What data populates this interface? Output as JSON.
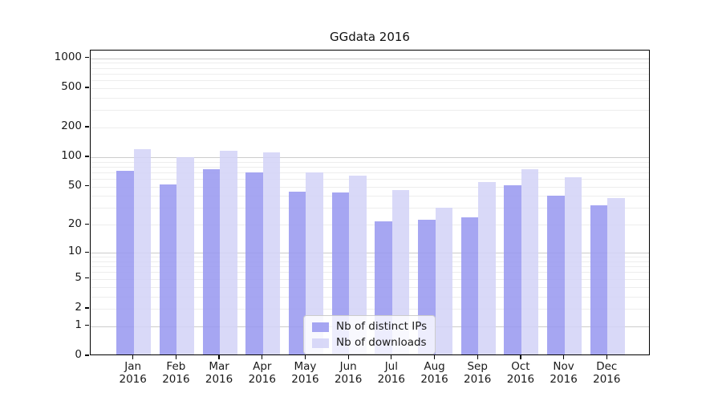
{
  "title": "GGdata 2016",
  "chart_data": {
    "type": "bar",
    "title": "GGdata 2016",
    "categories": [
      {
        "month": "Jan",
        "year": "2016"
      },
      {
        "month": "Feb",
        "year": "2016"
      },
      {
        "month": "Mar",
        "year": "2016"
      },
      {
        "month": "Apr",
        "year": "2016"
      },
      {
        "month": "May",
        "year": "2016"
      },
      {
        "month": "Jun",
        "year": "2016"
      },
      {
        "month": "Jul",
        "year": "2016"
      },
      {
        "month": "Aug",
        "year": "2016"
      },
      {
        "month": "Sep",
        "year": "2016"
      },
      {
        "month": "Oct",
        "year": "2016"
      },
      {
        "month": "Nov",
        "year": "2016"
      },
      {
        "month": "Dec",
        "year": "2016"
      }
    ],
    "series": [
      {
        "name": "Nb of distinct IPs",
        "color": "rgba(150,150,240,0.85)",
        "values": [
          70,
          51,
          73,
          67,
          43,
          42,
          21,
          22,
          23,
          50,
          39,
          31
        ]
      },
      {
        "name": "Nb of downloads",
        "color": "rgba(210,210,247,0.85)",
        "values": [
          117,
          96,
          113,
          107,
          67,
          62,
          44,
          29,
          54,
          73,
          60,
          37
        ]
      }
    ],
    "y_axis": {
      "scale": "log10(value+1)",
      "ticks": [
        0,
        1,
        2,
        5,
        10,
        20,
        50,
        100,
        200,
        500,
        1000
      ],
      "major_gridlines": [
        1,
        10,
        100,
        1000
      ],
      "ylim": [
        0,
        1200
      ]
    },
    "xlabel": "",
    "ylabel": "",
    "grid": "horizontal major+minor",
    "legend_position": "lower center"
  },
  "colors": {
    "major_grid": "#cccccc",
    "minor_grid": "#ededed",
    "spine": "#000000",
    "text": "#1a1a1a"
  }
}
